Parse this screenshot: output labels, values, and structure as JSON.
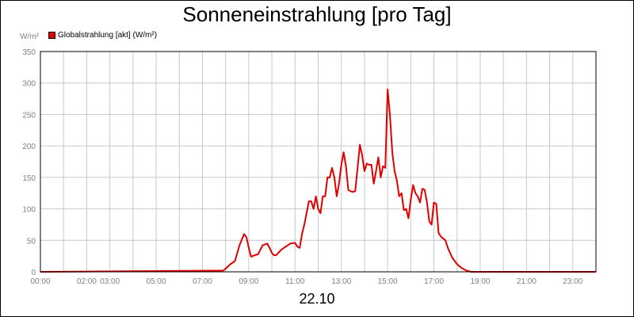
{
  "chart_data": {
    "type": "line",
    "title": "Sonneneinstrahlung [pro Tag]",
    "y_unit_label": "W/m²",
    "xlabel": "22.10",
    "ylim": [
      0,
      350
    ],
    "xlim": [
      0,
      24
    ],
    "grid": true,
    "legend_placement": "top-left",
    "y_ticks": [
      0,
      50,
      100,
      150,
      200,
      250,
      300,
      350
    ],
    "x_ticks": [
      {
        "label": "00:00",
        "hour": 0
      },
      {
        "label": "02:00",
        "hour": 2
      },
      {
        "label": "03:00",
        "hour": 3
      },
      {
        "label": "05:00",
        "hour": 5
      },
      {
        "label": "07:00",
        "hour": 7
      },
      {
        "label": "09:00",
        "hour": 9
      },
      {
        "label": "11:00",
        "hour": 11
      },
      {
        "label": "13:00",
        "hour": 13
      },
      {
        "label": "15:00",
        "hour": 15
      },
      {
        "label": "17:00",
        "hour": 17
      },
      {
        "label": "19:00",
        "hour": 19
      },
      {
        "label": "21:00",
        "hour": 21
      },
      {
        "label": "23:00",
        "hour": 23
      }
    ],
    "series": [
      {
        "name": "Globalstrahlung [akt] (W/m²)",
        "color": "#e00000",
        "x": [
          0,
          7.9,
          8.0,
          8.2,
          8.4,
          8.6,
          8.8,
          8.9,
          9.0,
          9.1,
          9.3,
          9.4,
          9.6,
          9.8,
          9.9,
          10.0,
          10.1,
          10.2,
          10.4,
          10.6,
          10.8,
          11.0,
          11.1,
          11.2,
          11.3,
          11.4,
          11.6,
          11.7,
          11.8,
          11.9,
          12.0,
          12.1,
          12.2,
          12.3,
          12.4,
          12.5,
          12.6,
          12.7,
          12.8,
          12.9,
          13.0,
          13.1,
          13.2,
          13.3,
          13.4,
          13.5,
          13.6,
          13.7,
          13.8,
          13.9,
          14.0,
          14.1,
          14.2,
          14.3,
          14.4,
          14.5,
          14.6,
          14.7,
          14.8,
          14.9,
          15.0,
          15.1,
          15.2,
          15.3,
          15.4,
          15.5,
          15.6,
          15.7,
          15.8,
          15.9,
          16.0,
          16.1,
          16.2,
          16.3,
          16.4,
          16.5,
          16.6,
          16.7,
          16.8,
          16.9,
          17.0,
          17.1,
          17.2,
          17.3,
          17.5,
          17.6,
          17.8,
          18.0,
          18.2,
          18.4,
          18.6,
          18.8,
          19.0,
          24
        ],
        "values": [
          0,
          2,
          5,
          12,
          17,
          42,
          60,
          55,
          38,
          24,
          27,
          28,
          42,
          45,
          38,
          30,
          26,
          27,
          35,
          40,
          45,
          46,
          40,
          38,
          60,
          75,
          112,
          112,
          100,
          120,
          100,
          93,
          120,
          120,
          150,
          150,
          165,
          150,
          120,
          140,
          170,
          190,
          168,
          130,
          128,
          127,
          128,
          165,
          202,
          185,
          160,
          172,
          170,
          170,
          140,
          160,
          182,
          150,
          168,
          165,
          290,
          250,
          190,
          160,
          145,
          120,
          125,
          98,
          100,
          85,
          115,
          138,
          125,
          120,
          110,
          132,
          130,
          110,
          80,
          75,
          110,
          108,
          62,
          56,
          50,
          38,
          22,
          12,
          6,
          2,
          0,
          0,
          0,
          0
        ]
      }
    ]
  }
}
